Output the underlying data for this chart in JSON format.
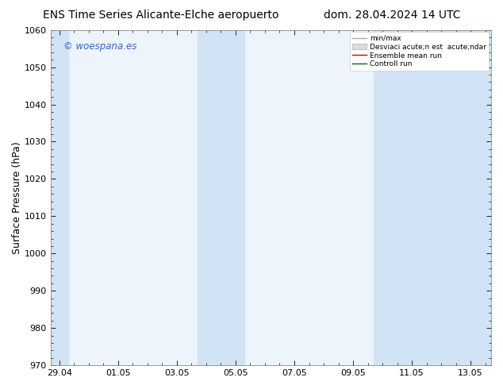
{
  "title_left": "ENS Time Series Alicante-Elche aeropuerto",
  "title_right": "dom. 28.04.2024 14 UTC",
  "ylabel": "Surface Pressure (hPa)",
  "ylim": [
    970,
    1060
  ],
  "yticks": [
    970,
    980,
    990,
    1000,
    1010,
    1020,
    1030,
    1040,
    1050,
    1060
  ],
  "x_tick_labels": [
    "29.04",
    "01.05",
    "03.05",
    "05.05",
    "07.05",
    "09.05",
    "11.05",
    "13.05"
  ],
  "x_tick_positions": [
    0,
    2,
    4,
    6,
    8,
    10,
    12,
    14
  ],
  "xlim": [
    -0.3,
    14.7
  ],
  "shaded_bands": [
    {
      "x_start": -0.3,
      "x_end": 0.3
    },
    {
      "x_start": 4.7,
      "x_end": 6.3
    },
    {
      "x_start": 10.7,
      "x_end": 14.7
    }
  ],
  "watermark": "© woespana.es",
  "legend_line1": "min/max",
  "legend_line2": "Desviaci acute;n est  acute;ndar",
  "legend_line3": "Ensemble mean run",
  "legend_line4": "Controll run",
  "bg_color": "#ffffff",
  "plot_bg_color": "#eef4fb",
  "band_color": "#d0e4f5",
  "title_fontsize": 10,
  "tick_fontsize": 8,
  "ylabel_fontsize": 9
}
